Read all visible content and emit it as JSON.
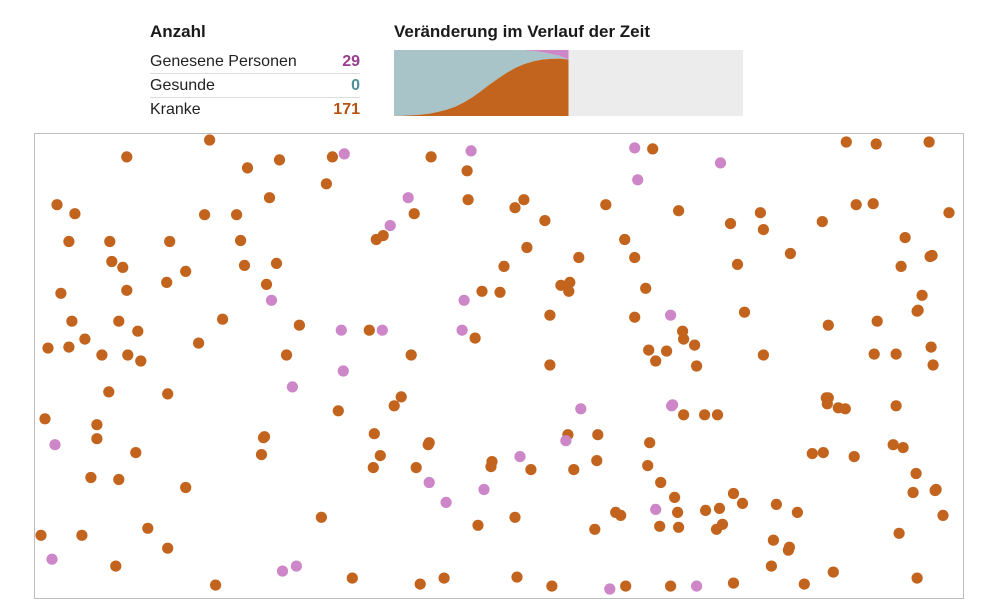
{
  "counts": {
    "title": "Anzahl",
    "rows": [
      {
        "label": "Genesene Personen",
        "value": "29",
        "color": "#9b3d8e"
      },
      {
        "label": "Gesunde",
        "value": "0",
        "color": "#4e8f98"
      },
      {
        "label": "Kranke",
        "value": "171",
        "color": "#b5520f"
      }
    ]
  },
  "trend": {
    "title": "Veränderung im Verlauf der Zeit"
  },
  "colors": {
    "sick": "#c2641e",
    "recovered": "#cd87c8",
    "healthy": "#a9c4c8",
    "empty": "#ececec"
  },
  "chart_data": [
    {
      "type": "area",
      "title": "Veränderung im Verlauf der Zeit",
      "progress": 0.5,
      "total": 200,
      "x": [
        0,
        1,
        2,
        3,
        4,
        5,
        6,
        7,
        8,
        9,
        10,
        11,
        12,
        13,
        14,
        15,
        16,
        17,
        18,
        19,
        20
      ],
      "series": [
        {
          "status": "sick",
          "values": [
            0,
            1,
            2,
            4,
            7,
            12,
            19,
            28,
            41,
            57,
            76,
            96,
            115,
            132,
            147,
            158,
            166,
            171,
            173,
            174,
            171
          ]
        },
        {
          "status": "healthy",
          "values": [
            200,
            199,
            198,
            196,
            193,
            188,
            181,
            172,
            159,
            143,
            124,
            104,
            85,
            68,
            53,
            41,
            31,
            22,
            15,
            8,
            0
          ]
        },
        {
          "status": "recovered",
          "values": [
            0,
            0,
            0,
            0,
            0,
            0,
            0,
            0,
            0,
            0,
            0,
            0,
            0,
            0,
            0,
            1,
            3,
            7,
            12,
            18,
            29
          ]
        }
      ]
    },
    {
      "type": "scatter",
      "x_range": [
        0,
        930
      ],
      "y_range": [
        0,
        466
      ],
      "sick": [
        [
          92,
          23
        ],
        [
          175,
          6
        ],
        [
          298,
          23
        ],
        [
          397,
          23
        ],
        [
          433,
          37
        ],
        [
          213,
          34
        ],
        [
          245,
          26
        ],
        [
          619,
          15
        ],
        [
          813,
          8
        ],
        [
          843,
          10
        ],
        [
          896,
          8
        ],
        [
          22,
          71
        ],
        [
          40,
          80
        ],
        [
          92,
          157
        ],
        [
          170,
          81
        ],
        [
          202,
          81
        ],
        [
          235,
          64
        ],
        [
          292,
          50
        ],
        [
          380,
          80
        ],
        [
          434,
          66
        ],
        [
          481,
          74
        ],
        [
          490,
          66
        ],
        [
          511,
          87
        ],
        [
          572,
          71
        ],
        [
          645,
          77
        ],
        [
          727,
          79
        ],
        [
          789,
          88
        ],
        [
          823,
          71
        ],
        [
          840,
          70
        ],
        [
          916,
          79
        ],
        [
          34,
          108
        ],
        [
          75,
          108
        ],
        [
          135,
          108
        ],
        [
          206,
          107
        ],
        [
          342,
          106
        ],
        [
          349,
          102
        ],
        [
          493,
          114
        ],
        [
          591,
          106
        ],
        [
          697,
          90
        ],
        [
          730,
          96
        ],
        [
          757,
          120
        ],
        [
          872,
          104
        ],
        [
          897,
          123
        ],
        [
          77,
          128
        ],
        [
          88,
          134
        ],
        [
          151,
          138
        ],
        [
          210,
          132
        ],
        [
          242,
          130
        ],
        [
          470,
          133
        ],
        [
          527,
          152
        ],
        [
          545,
          124
        ],
        [
          535,
          158
        ],
        [
          601,
          124
        ],
        [
          704,
          131
        ],
        [
          868,
          133
        ],
        [
          899,
          122
        ],
        [
          26,
          160
        ],
        [
          132,
          149
        ],
        [
          232,
          151
        ],
        [
          448,
          158
        ],
        [
          466,
          159
        ],
        [
          536,
          149
        ],
        [
          612,
          155
        ],
        [
          889,
          162
        ],
        [
          37,
          188
        ],
        [
          103,
          198
        ],
        [
          188,
          186
        ],
        [
          265,
          192
        ],
        [
          516,
          182
        ],
        [
          601,
          184
        ],
        [
          649,
          198
        ],
        [
          711,
          179
        ],
        [
          795,
          192
        ],
        [
          844,
          188
        ],
        [
          884,
          178
        ],
        [
          885,
          177
        ],
        [
          34,
          214
        ],
        [
          50,
          206
        ],
        [
          93,
          222
        ],
        [
          84,
          188
        ],
        [
          650,
          206
        ],
        [
          13,
          215
        ],
        [
          67,
          222
        ],
        [
          106,
          228
        ],
        [
          164,
          210
        ],
        [
          252,
          222
        ],
        [
          335,
          197
        ],
        [
          377,
          222
        ],
        [
          441,
          205
        ],
        [
          516,
          232
        ],
        [
          615,
          217
        ],
        [
          622,
          228
        ],
        [
          633,
          218
        ],
        [
          661,
          212
        ],
        [
          663,
          233
        ],
        [
          730,
          222
        ],
        [
          841,
          221
        ],
        [
          863,
          221
        ],
        [
          898,
          214
        ],
        [
          10,
          286
        ],
        [
          133,
          261
        ],
        [
          229,
          305
        ],
        [
          304,
          278
        ],
        [
          360,
          273
        ],
        [
          367,
          264
        ],
        [
          340,
          301
        ],
        [
          457,
          334
        ],
        [
          563,
          328
        ],
        [
          616,
          310
        ],
        [
          650,
          282
        ],
        [
          684,
          282
        ],
        [
          795,
          265
        ],
        [
          812,
          276
        ],
        [
          900,
          232
        ],
        [
          863,
          273
        ],
        [
          805,
          275
        ],
        [
          74,
          259
        ],
        [
          62,
          292
        ],
        [
          62,
          306
        ],
        [
          101,
          320
        ],
        [
          230,
          304
        ],
        [
          227,
          322
        ],
        [
          346,
          323
        ],
        [
          382,
          335
        ],
        [
          394,
          312
        ],
        [
          497,
          337
        ],
        [
          534,
          302
        ],
        [
          564,
          302
        ],
        [
          671,
          282
        ],
        [
          794,
          271
        ],
        [
          793,
          265
        ],
        [
          860,
          312
        ],
        [
          56,
          345
        ],
        [
          84,
          347
        ],
        [
          151,
          355
        ],
        [
          339,
          335
        ],
        [
          395,
          310
        ],
        [
          458,
          329
        ],
        [
          540,
          337
        ],
        [
          614,
          333
        ],
        [
          627,
          350
        ],
        [
          641,
          365
        ],
        [
          644,
          380
        ],
        [
          672,
          378
        ],
        [
          686,
          376
        ],
        [
          689,
          392
        ],
        [
          700,
          361
        ],
        [
          709,
          371
        ],
        [
          743,
          372
        ],
        [
          779,
          321
        ],
        [
          790,
          320
        ],
        [
          821,
          324
        ],
        [
          870,
          315
        ],
        [
          880,
          360
        ],
        [
          883,
          341
        ],
        [
          902,
          358
        ],
        [
          910,
          383
        ],
        [
          6,
          403
        ],
        [
          47,
          403
        ],
        [
          113,
          396
        ],
        [
          133,
          416
        ],
        [
          287,
          385
        ],
        [
          444,
          393
        ],
        [
          481,
          385
        ],
        [
          561,
          397
        ],
        [
          582,
          380
        ],
        [
          587,
          383
        ],
        [
          626,
          394
        ],
        [
          645,
          395
        ],
        [
          683,
          397
        ],
        [
          740,
          408
        ],
        [
          755,
          418
        ],
        [
          764,
          380
        ],
        [
          866,
          401
        ],
        [
          903,
          357
        ],
        [
          81,
          434
        ],
        [
          181,
          453
        ],
        [
          318,
          446
        ],
        [
          386,
          452
        ],
        [
          410,
          446
        ],
        [
          483,
          445
        ],
        [
          518,
          454
        ],
        [
          592,
          454
        ],
        [
          637,
          454
        ],
        [
          700,
          451
        ],
        [
          771,
          452
        ],
        [
          800,
          440
        ],
        [
          884,
          446
        ],
        [
          738,
          434
        ],
        [
          756,
          415
        ]
      ],
      "recovered": [
        [
          310,
          20
        ],
        [
          437,
          17
        ],
        [
          601,
          14
        ],
        [
          604,
          46
        ],
        [
          687,
          29
        ],
        [
          374,
          64
        ],
        [
          356,
          92
        ],
        [
          237,
          167
        ],
        [
          430,
          167
        ],
        [
          428,
          197
        ],
        [
          307,
          197
        ],
        [
          348,
          197
        ],
        [
          309,
          238
        ],
        [
          258,
          254
        ],
        [
          637,
          182
        ],
        [
          547,
          276
        ],
        [
          639,
          272
        ],
        [
          638,
          273
        ],
        [
          532,
          308
        ],
        [
          486,
          324
        ],
        [
          395,
          350
        ],
        [
          412,
          370
        ],
        [
          450,
          357
        ],
        [
          622,
          377
        ],
        [
          20,
          312
        ],
        [
          17,
          427
        ],
        [
          248,
          439
        ],
        [
          262,
          434
        ],
        [
          576,
          457
        ],
        [
          663,
          454
        ]
      ]
    }
  ]
}
